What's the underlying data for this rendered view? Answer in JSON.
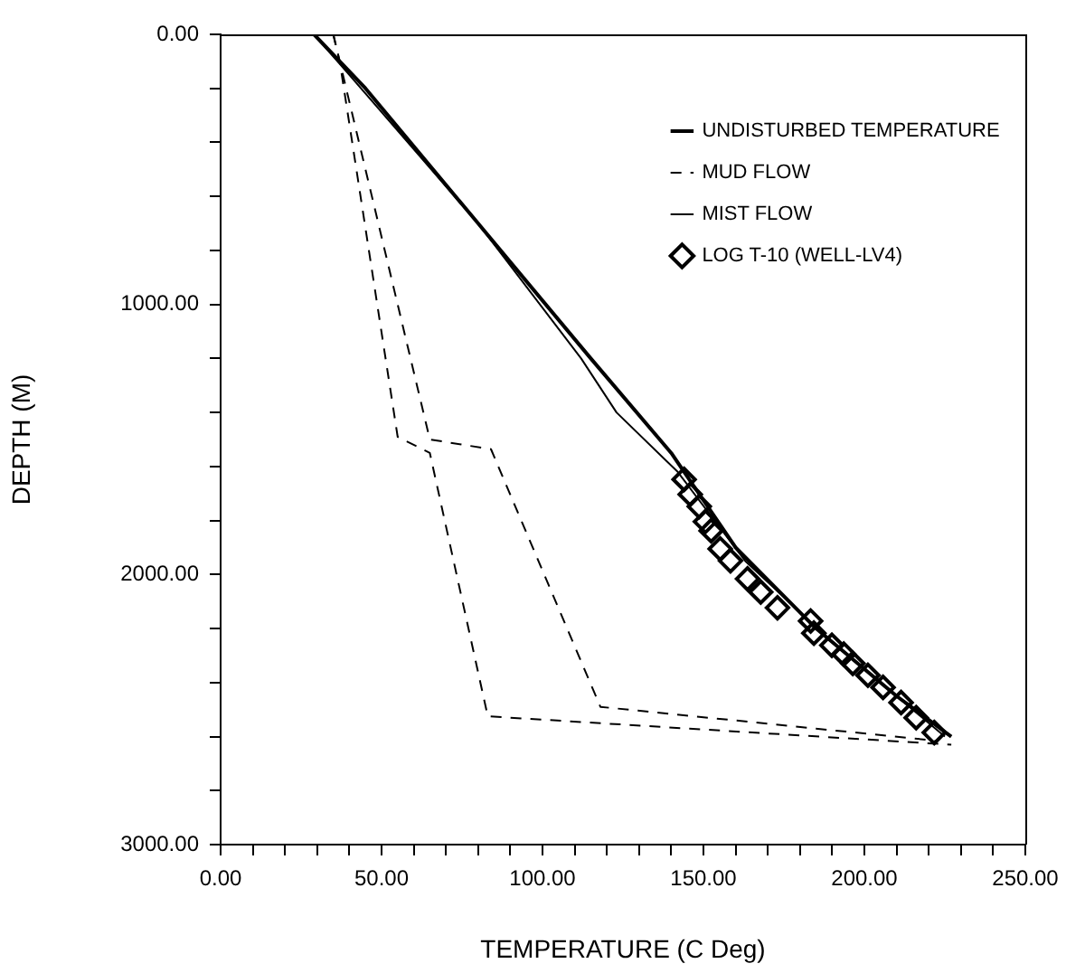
{
  "chart_data": {
    "type": "line",
    "xlabel": "TEMPERATURE (C Deg)",
    "ylabel": "DEPTH (M)",
    "xlim": [
      0,
      250
    ],
    "ylim": [
      3000,
      0
    ],
    "xticks": [
      {
        "value": 0,
        "label": "0.00"
      },
      {
        "value": 10,
        "label": null
      },
      {
        "value": 20,
        "label": null
      },
      {
        "value": 30,
        "label": null
      },
      {
        "value": 40,
        "label": null
      },
      {
        "value": 50,
        "label": "50.00"
      },
      {
        "value": 60,
        "label": null
      },
      {
        "value": 70,
        "label": null
      },
      {
        "value": 80,
        "label": null
      },
      {
        "value": 90,
        "label": null
      },
      {
        "value": 100,
        "label": "100.00"
      },
      {
        "value": 110,
        "label": null
      },
      {
        "value": 120,
        "label": null
      },
      {
        "value": 130,
        "label": null
      },
      {
        "value": 140,
        "label": null
      },
      {
        "value": 150,
        "label": "150.00"
      },
      {
        "value": 160,
        "label": null
      },
      {
        "value": 170,
        "label": null
      },
      {
        "value": 180,
        "label": null
      },
      {
        "value": 190,
        "label": null
      },
      {
        "value": 200,
        "label": "200.00"
      },
      {
        "value": 210,
        "label": null
      },
      {
        "value": 220,
        "label": null
      },
      {
        "value": 230,
        "label": null
      },
      {
        "value": 240,
        "label": null
      },
      {
        "value": 250,
        "label": "250.00"
      }
    ],
    "yticks": [
      {
        "value": 0,
        "label": "0.00"
      },
      {
        "value": 200,
        "label": null
      },
      {
        "value": 400,
        "label": null
      },
      {
        "value": 600,
        "label": null
      },
      {
        "value": 800,
        "label": null
      },
      {
        "value": 1000,
        "label": "1000.00"
      },
      {
        "value": 1200,
        "label": null
      },
      {
        "value": 1400,
        "label": null
      },
      {
        "value": 1600,
        "label": null
      },
      {
        "value": 1800,
        "label": null
      },
      {
        "value": 2000,
        "label": "2000.00"
      },
      {
        "value": 2200,
        "label": null
      },
      {
        "value": 2400,
        "label": null
      },
      {
        "value": 2600,
        "label": null
      },
      {
        "value": 2800,
        "label": null
      },
      {
        "value": 3000,
        "label": "3000.00"
      }
    ],
    "grid": false,
    "legend": "top right",
    "series": [
      {
        "name": "UNDISTURBED TEMPERATURE",
        "color": "#000000",
        "line_style": "solid",
        "marker": "none",
        "x": [
          29,
          45,
          80,
          115,
          140,
          160,
          185,
          210,
          227
        ],
        "values": [
          0,
          200,
          700,
          1200,
          1550,
          1900,
          2200,
          2450,
          2600
        ]
      },
      {
        "name": "MUD FLOW",
        "color": "#000000",
        "line_style": "dashed",
        "marker": "none",
        "x": [
          35,
          37,
          55,
          65,
          83,
          227
        ],
        "values": [
          0,
          100,
          1490,
          1550,
          2525,
          2630
        ]
      },
      {
        "color": "#000000",
        "line_style": "dashed",
        "marker": "none",
        "x": [
          35,
          37,
          65,
          84,
          118,
          222
        ],
        "values": [
          0,
          100,
          1500,
          1536,
          2490,
          2615
        ]
      },
      {
        "name": "MIST FLOW",
        "color": "#000000",
        "line_style": "solid",
        "marker": "none",
        "x": [
          29,
          40,
          80,
          112,
          123,
          142,
          163,
          190,
          215,
          225
        ],
        "values": [
          0,
          150,
          700,
          1200,
          1400,
          1620,
          1950,
          2250,
          2500,
          2600
        ]
      },
      {
        "name": "LOG T-10 (WELL-LV4)",
        "type": "scatter",
        "color": "#000000",
        "marker": "diamond",
        "x": [
          144,
          145.9,
          148.7,
          150.6,
          152.4,
          155.2,
          158.4,
          163.7,
          167.8,
          173,
          183.3,
          184.3,
          189.9,
          193.6,
          196.4,
          201.1,
          205.8,
          211.4,
          216.1,
          221.7
        ],
        "values": [
          1648,
          1703,
          1748,
          1804,
          1838,
          1905,
          1949,
          2016,
          2065,
          2123,
          2172,
          2217,
          2262,
          2295,
          2329,
          2373,
          2418,
          2474,
          2530,
          2585
        ]
      }
    ]
  }
}
